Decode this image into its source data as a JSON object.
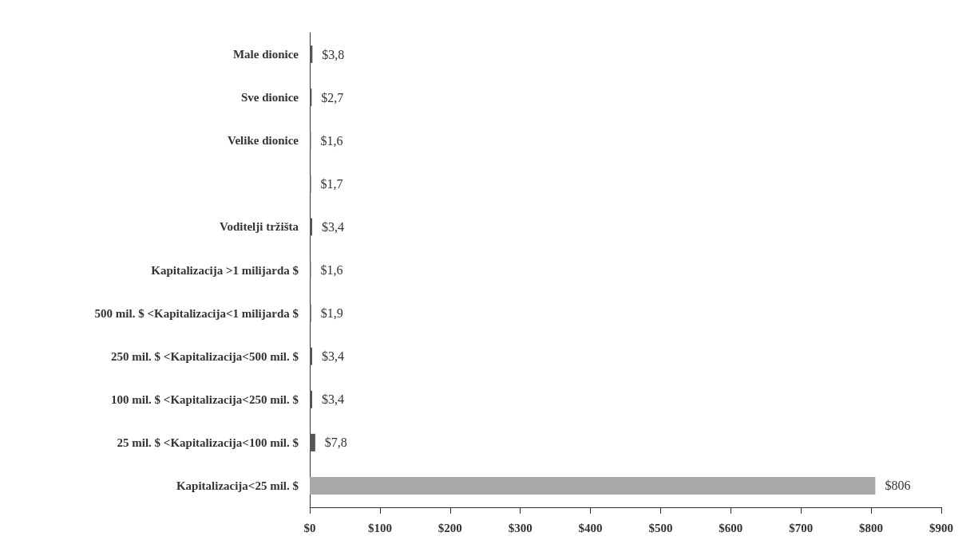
{
  "chart_data": {
    "type": "bar",
    "orientation": "horizontal",
    "categories": [
      "Male dionice",
      "Sve dionice",
      "Velike dionice",
      null,
      "Voditelji tržišta",
      "Kapitalizacija >1 milijarda $",
      "500 mil. $ <Kapitalizacija<1 milijarda $",
      "250 mil. $ <Kapitalizacija<500 mil. $",
      "100 mil. $ <Kapitalizacija<250 mil. $",
      "25 mil. $ <Kapitalizacija<100 mil. $",
      "Kapitalizacija<25 mil. $"
    ],
    "values": [
      3.8,
      2.7,
      1.6,
      1.7,
      3.4,
      1.6,
      1.9,
      3.4,
      3.4,
      7.8,
      806
    ],
    "value_labels": [
      "$3,8",
      "$2,7",
      "$1,6",
      "$1,7",
      "$3,4",
      "$1,6",
      "$1,9",
      "$3,4",
      "$3,4",
      "$7,8",
      "$806"
    ],
    "colors": [
      "#555555",
      "#555555",
      "#555555",
      "#555555",
      "#555555",
      "#555555",
      "#555555",
      "#555555",
      "#555555",
      "#555555",
      "#a8a8a8"
    ],
    "xlim": [
      0,
      900
    ],
    "xticks": [
      {
        "value": 0,
        "label": "$0"
      },
      {
        "value": 100,
        "label": "$100"
      },
      {
        "value": 200,
        "label": "$200"
      },
      {
        "value": 300,
        "label": "$300"
      },
      {
        "value": 400,
        "label": "$400"
      },
      {
        "value": 500,
        "label": "$500"
      },
      {
        "value": 600,
        "label": "$600"
      },
      {
        "value": 700,
        "label": "$700"
      },
      {
        "value": 800,
        "label": "$800"
      },
      {
        "value": 900,
        "label": "$900"
      }
    ],
    "grid": false
  }
}
